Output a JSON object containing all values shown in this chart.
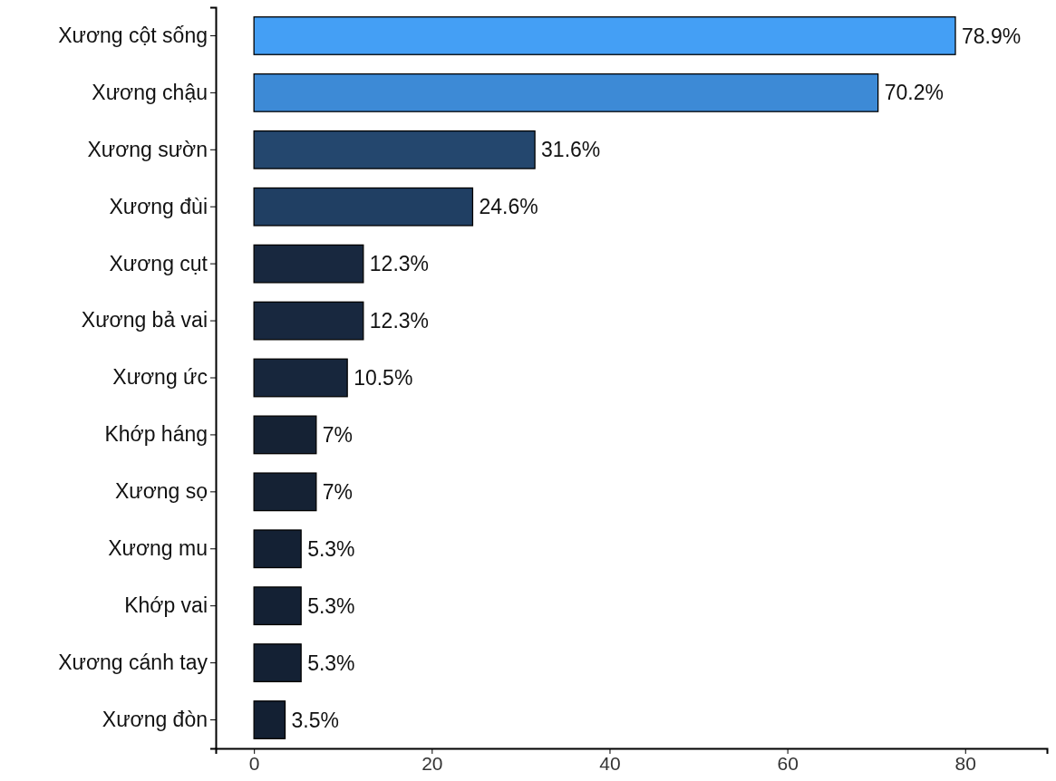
{
  "chart_data": {
    "type": "bar",
    "orientation": "horizontal",
    "categories": [
      "Xương cột sống",
      "Xương chậu",
      "Xương sườn",
      "Xương đùi",
      "Xương cụt",
      "Xương bả vai",
      "Xương ức",
      "Khớp háng",
      "Xương sọ",
      "Xương mu",
      "Khớp vai",
      "Xương cánh tay",
      "Xương đòn"
    ],
    "values": [
      78.9,
      70.2,
      31.6,
      24.6,
      12.3,
      12.3,
      10.5,
      7,
      7,
      5.3,
      5.3,
      5.3,
      3.5
    ],
    "colors": [
      "#449ff5",
      "#3d8ad6",
      "#24476e",
      "#203f63",
      "#18283f",
      "#18283f",
      "#17263c",
      "#152234",
      "#152234",
      "#142134",
      "#142134",
      "#142134",
      "#132033"
    ],
    "value_labels": [
      "78.9%",
      "70.2%",
      "31.6%",
      "24.6%",
      "12.3%",
      "12.3%",
      "10.5%",
      "7%",
      "7%",
      "5.3%",
      "5.3%",
      "5.3%",
      "3.5%"
    ],
    "xlim": [
      -4.3,
      89.2
    ],
    "xticks": [
      0,
      20,
      40,
      60,
      80
    ],
    "grid": false
  }
}
